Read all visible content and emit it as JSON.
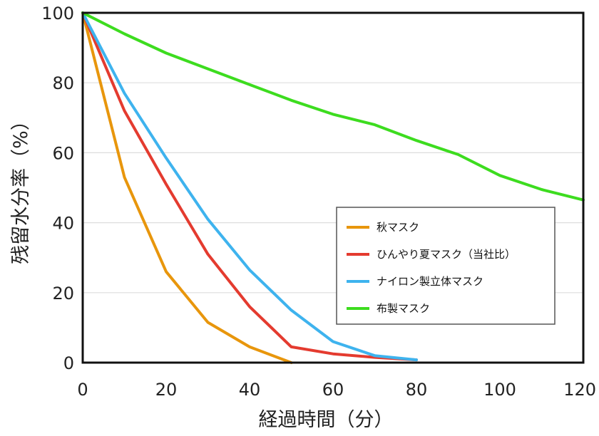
{
  "chart_data": {
    "type": "line",
    "title": "",
    "xlabel": "経過時間（分）",
    "ylabel": "残留水分率（%）",
    "xlim": [
      0,
      120
    ],
    "ylim": [
      0,
      100
    ],
    "xticks": [
      0,
      20,
      40,
      60,
      80,
      100,
      120
    ],
    "yticks": [
      0,
      20,
      40,
      60,
      80,
      100
    ],
    "grid": "horizontal",
    "legend_position": "center-right",
    "series": [
      {
        "name": "秋マスク",
        "color": "#E8960C",
        "x": [
          0,
          10,
          20,
          30,
          40,
          50
        ],
        "y": [
          100,
          53,
          26,
          11.5,
          4.5,
          0
        ]
      },
      {
        "name": "ひんやり夏マスク（当社比）",
        "color": "#E43B2F",
        "x": [
          0,
          10,
          20,
          30,
          40,
          50,
          60,
          70,
          80
        ],
        "y": [
          100,
          72,
          51,
          31,
          16,
          4.5,
          2.5,
          1.5,
          0.8
        ]
      },
      {
        "name": "ナイロン製立体マスク",
        "color": "#3EB3EE",
        "x": [
          0,
          10,
          20,
          30,
          40,
          50,
          60,
          70,
          80
        ],
        "y": [
          100,
          77,
          58.5,
          41,
          26.5,
          15,
          6,
          2,
          0.8
        ]
      },
      {
        "name": "布製マスク",
        "color": "#3DDC1F",
        "x": [
          0,
          10,
          20,
          30,
          40,
          50,
          60,
          70,
          80,
          90,
          100,
          110,
          120
        ],
        "y": [
          100,
          94,
          88.5,
          84,
          79.5,
          75,
          71,
          68,
          63.5,
          59.5,
          53.5,
          49.5,
          46.5
        ]
      }
    ]
  }
}
